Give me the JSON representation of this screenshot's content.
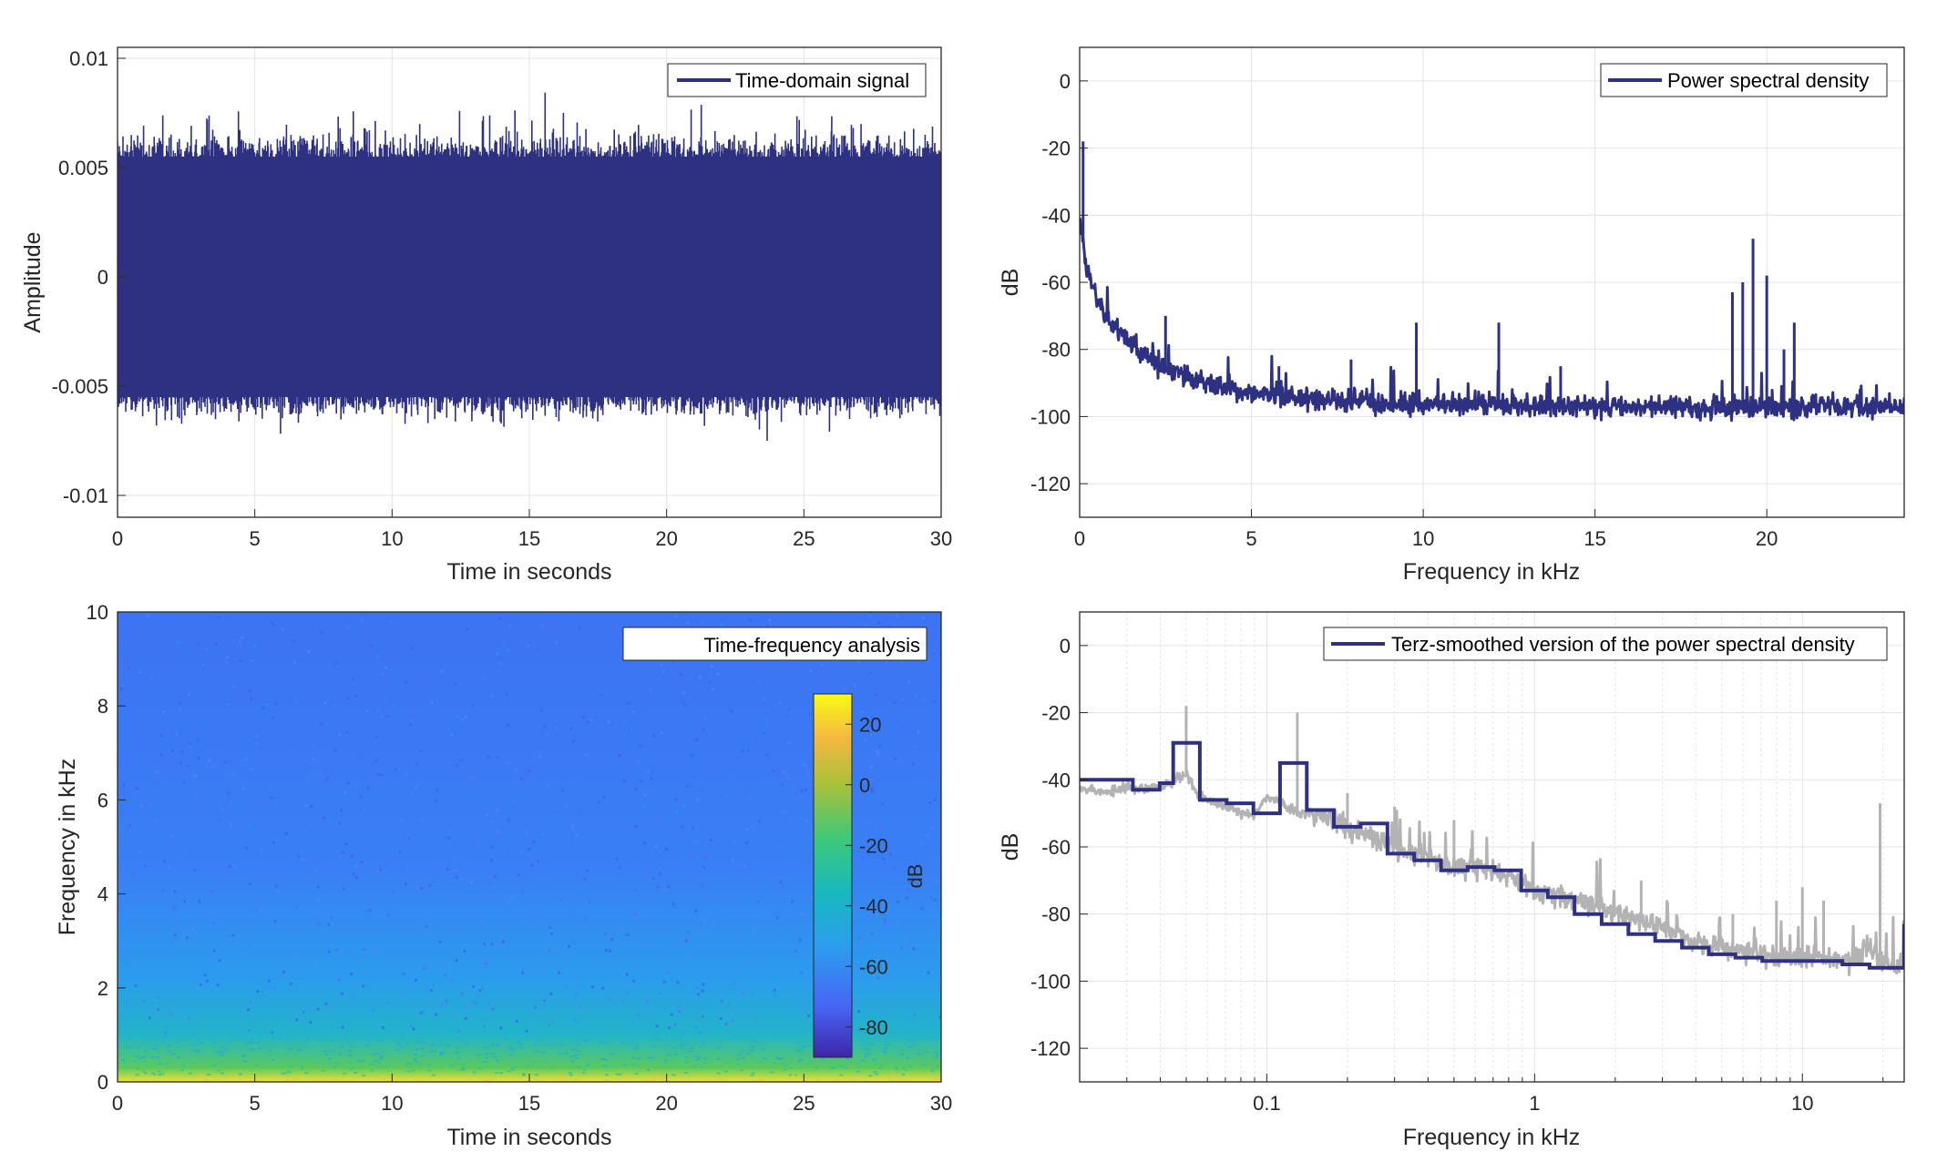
{
  "chart_data": [
    {
      "type": "line",
      "series": [
        {
          "name": "Time-domain signal",
          "color": "#2e3182"
        }
      ],
      "xlabel": "Time in seconds",
      "ylabel": "Amplitude",
      "xlim": [
        0,
        30
      ],
      "ylim": [
        -0.011,
        0.0105
      ],
      "xticks": [
        0,
        5,
        10,
        15,
        20,
        25,
        30
      ],
      "xtick_labels": [
        "0",
        "5",
        "10",
        "15",
        "20",
        "25",
        "30"
      ],
      "yticks": [
        -0.01,
        -0.005,
        0,
        0.005,
        0.01
      ],
      "ytick_labels": [
        "-0.01",
        "-0.005",
        "0",
        "0.005",
        "0.01"
      ],
      "envelope": {
        "dense_min": -0.0055,
        "dense_max": 0.0055,
        "peak_min": -0.0075,
        "peak_max": 0.009
      },
      "grid": true,
      "legend": "top-right"
    },
    {
      "type": "line",
      "series": [
        {
          "name": "Power spectral density",
          "color": "#2e3182"
        }
      ],
      "xlabel": "Frequency in kHz",
      "ylabel": "dB",
      "xlim": [
        0,
        24
      ],
      "ylim": [
        -130,
        10
      ],
      "xticks": [
        0,
        5,
        10,
        15,
        20
      ],
      "xtick_labels": [
        "0",
        "5",
        "10",
        "15",
        "20"
      ],
      "yticks": [
        -120,
        -100,
        -80,
        -60,
        -40,
        -20,
        0
      ],
      "ytick_labels": [
        "-120",
        "-100",
        "-80",
        "-60",
        "-40",
        "-20",
        "0"
      ],
      "baseline_curve": {
        "x": [
          0,
          0.2,
          0.5,
          1,
          2,
          3,
          4,
          5,
          7,
          10,
          15,
          20,
          24
        ],
        "y": [
          -40,
          -55,
          -65,
          -73,
          -83,
          -88,
          -91,
          -93,
          -95,
          -96,
          -97,
          -97,
          -97
        ]
      },
      "spikes": [
        {
          "x": 0.1,
          "y": -18
        },
        {
          "x": 2.5,
          "y": -70
        },
        {
          "x": 5.8,
          "y": -85
        },
        {
          "x": 7.9,
          "y": -83
        },
        {
          "x": 9.8,
          "y": -72
        },
        {
          "x": 12.2,
          "y": -72
        },
        {
          "x": 14.0,
          "y": -85
        },
        {
          "x": 19.0,
          "y": -63
        },
        {
          "x": 19.3,
          "y": -60
        },
        {
          "x": 19.6,
          "y": -47
        },
        {
          "x": 20.0,
          "y": -58
        },
        {
          "x": 20.5,
          "y": -80
        },
        {
          "x": 20.8,
          "y": -72
        }
      ],
      "grid": true,
      "legend": "top-right"
    },
    {
      "type": "heatmap",
      "series": [
        {
          "name": "Time-frequency analysis"
        }
      ],
      "xlabel": "Time in seconds",
      "ylabel": "Frequency in kHz",
      "xlim": [
        0,
        30
      ],
      "ylim": [
        0,
        10
      ],
      "xticks": [
        0,
        5,
        10,
        15,
        20,
        25,
        30
      ],
      "xtick_labels": [
        "0",
        "5",
        "10",
        "15",
        "20",
        "25",
        "30"
      ],
      "yticks": [
        0,
        2,
        4,
        6,
        8,
        10
      ],
      "ytick_labels": [
        "0",
        "2",
        "4",
        "6",
        "8",
        "10"
      ],
      "colorbar": {
        "label": "dB",
        "clim": [
          -90,
          30
        ],
        "ticks": [
          -80,
          -60,
          -40,
          -20,
          0,
          20
        ],
        "tick_labels": [
          "-80",
          "-60",
          "-40",
          "-20",
          "0",
          "20"
        ],
        "colors": [
          "#3e26a8",
          "#4765f5",
          "#2d9cf0",
          "#17b9bf",
          "#3bc87a",
          "#a9c13a",
          "#f4b83f",
          "#f9fb15"
        ]
      },
      "intensity_profile": {
        "freq_khz": [
          0,
          0.1,
          0.3,
          0.6,
          1,
          2,
          4,
          10
        ],
        "db": [
          -20,
          -30,
          -45,
          -50,
          -55,
          -62,
          -64,
          -66
        ]
      },
      "legend": "top-right"
    },
    {
      "type": "line",
      "xscale": "log",
      "series": [
        {
          "name": "",
          "color": "#b3b3b3",
          "x": [
            0.02,
            0.025,
            0.03,
            0.035,
            0.04,
            0.045,
            0.05,
            0.055,
            0.06,
            0.07,
            0.08,
            0.09,
            0.1,
            0.12,
            0.13,
            0.15,
            0.18,
            0.2,
            0.25,
            0.3,
            0.4,
            0.5,
            0.6,
            0.8,
            1,
            1.5,
            2,
            3,
            4,
            5,
            7,
            10,
            15,
            18,
            20,
            24
          ],
          "y": [
            -42,
            -44,
            -42,
            -43,
            -42,
            -40,
            -38,
            -44,
            -46,
            -48,
            -50,
            -50,
            -45,
            -48,
            -50,
            -50,
            -52,
            -55,
            -57,
            -60,
            -63,
            -66,
            -66,
            -68,
            -73,
            -76,
            -80,
            -84,
            -88,
            -90,
            -92,
            -93,
            -94,
            -90,
            -95,
            -95
          ]
        },
        {
          "name": "Terz-smoothed version of the power spectral density",
          "color": "#2e3182",
          "bands_x": [
            0.02,
            0.0316,
            0.0398,
            0.0447,
            0.0562,
            0.0708,
            0.0891,
            0.112,
            0.141,
            0.178,
            0.224,
            0.282,
            0.355,
            0.447,
            0.562,
            0.708,
            0.891,
            1.12,
            1.41,
            1.78,
            2.24,
            2.82,
            3.55,
            4.47,
            5.62,
            7.08,
            8.91,
            11.2,
            14.1,
            17.8,
            24
          ],
          "bands_y": [
            -40,
            -43,
            -41,
            -29,
            -46,
            -47,
            -50,
            -35,
            -49,
            -54,
            -53,
            -62,
            -64,
            -67,
            -66,
            -67,
            -73,
            -75,
            -80,
            -83,
            -86,
            -88,
            -90,
            -92,
            -93,
            -94,
            -94,
            -94,
            -95,
            -96,
            -83
          ]
        }
      ],
      "xlabel": "Frequency in kHz",
      "ylabel": "dB",
      "xlim": [
        0.02,
        24
      ],
      "ylim": [
        -130,
        10
      ],
      "xticks": [
        0.1,
        1,
        10
      ],
      "xtick_labels": [
        "0.1",
        "1",
        "10"
      ],
      "yticks": [
        -120,
        -100,
        -80,
        -60,
        -40,
        -20,
        0
      ],
      "ytick_labels": [
        "-120",
        "-100",
        "-80",
        "-60",
        "-40",
        "-20",
        "0"
      ],
      "gray_spikes": [
        {
          "x": 0.05,
          "y": -18
        },
        {
          "x": 0.13,
          "y": -20
        },
        {
          "x": 0.2,
          "y": -44
        },
        {
          "x": 0.3,
          "y": -48
        },
        {
          "x": 0.5,
          "y": -52
        },
        {
          "x": 2.5,
          "y": -70
        },
        {
          "x": 5.5,
          "y": -80
        },
        {
          "x": 8,
          "y": -76
        },
        {
          "x": 10,
          "y": -72
        },
        {
          "x": 12,
          "y": -76
        },
        {
          "x": 19.5,
          "y": -47
        }
      ],
      "grid": true,
      "legend": "top-right"
    }
  ]
}
